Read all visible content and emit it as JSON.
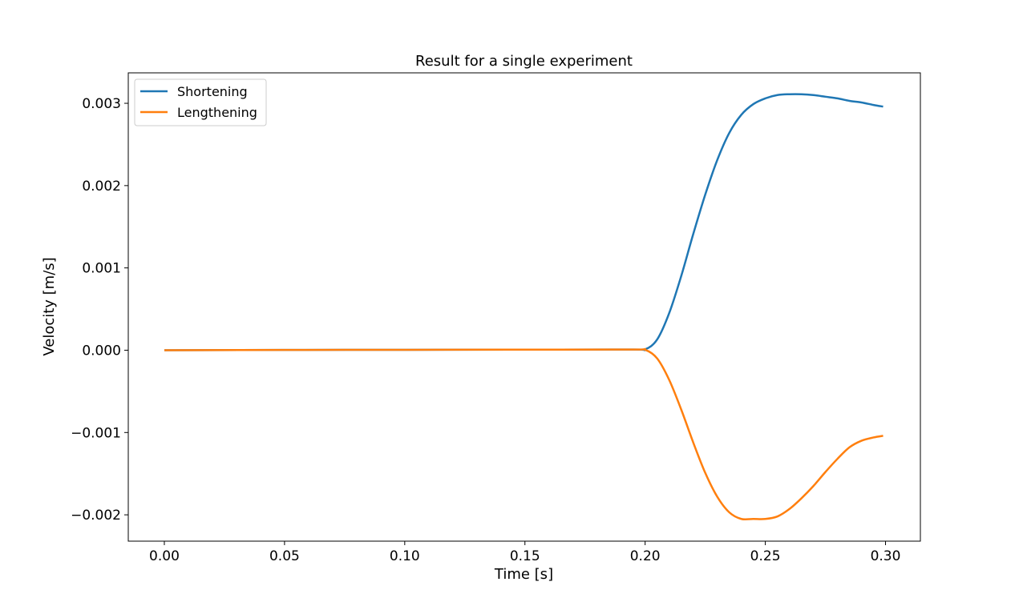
{
  "chart_data": {
    "type": "line",
    "title": "Result for a single experiment",
    "xlabel": "Time [s]",
    "ylabel": "Velocity [m/s]",
    "xlim": [
      -0.015,
      0.3145
    ],
    "ylim": [
      -0.00232,
      0.00337
    ],
    "xticks": [
      0.0,
      0.05,
      0.1,
      0.15,
      0.2,
      0.25,
      0.3
    ],
    "xtick_labels": [
      "0.00",
      "0.05",
      "0.10",
      "0.15",
      "0.20",
      "0.25",
      "0.30"
    ],
    "yticks": [
      0.003,
      0.002,
      0.001,
      0.0,
      -0.001,
      -0.002
    ],
    "ytick_labels": [
      "0.003",
      "0.002",
      "0.001",
      "0.000",
      "−0.001",
      "−0.002"
    ],
    "grid": false,
    "legend_position": "top-left",
    "x": [
      0.0,
      0.05,
      0.1,
      0.15,
      0.195,
      0.2,
      0.205,
      0.21,
      0.215,
      0.22,
      0.225,
      0.23,
      0.235,
      0.24,
      0.245,
      0.25,
      0.255,
      0.26,
      0.265,
      0.27,
      0.275,
      0.28,
      0.285,
      0.29,
      0.295,
      0.299
    ],
    "series": [
      {
        "name": "Shortening",
        "color": "#1f77b4",
        "values": [
          0.0,
          3e-06,
          5e-06,
          7e-06,
          8e-06,
          1e-05,
          0.00013,
          0.00045,
          0.0009,
          0.00141,
          0.00189,
          0.00231,
          0.00264,
          0.00286,
          0.00299,
          0.00306,
          0.0031,
          0.00311,
          0.00311,
          0.0031,
          0.00308,
          0.00306,
          0.00303,
          0.00301,
          0.00298,
          0.00296
        ]
      },
      {
        "name": "Lengthening",
        "color": "#ff7f0e",
        "values": [
          0.0,
          3e-06,
          5e-06,
          7e-06,
          8e-06,
          5e-06,
          -0.0001,
          -0.00036,
          -0.00072,
          -0.00112,
          -0.00149,
          -0.00178,
          -0.00197,
          -0.00205,
          -0.00205,
          -0.00205,
          -0.00202,
          -0.00193,
          -0.0018,
          -0.00165,
          -0.00148,
          -0.00132,
          -0.00118,
          -0.0011,
          -0.00106,
          -0.00104
        ]
      }
    ]
  }
}
